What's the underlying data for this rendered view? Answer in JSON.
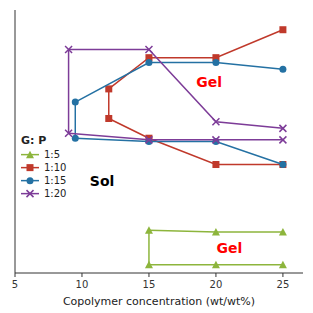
{
  "chart_data": {
    "type": "line",
    "xlabel": "Copolymer concentration (wt/wt%)",
    "xlim": [
      5,
      26.5
    ],
    "ylim": [
      0,
      80
    ],
    "xticks": [
      5,
      10,
      15,
      20,
      25
    ],
    "yticks": [],
    "tick_labels": "x",
    "legend": "center left",
    "legend_title": "G: P",
    "series": [
      {
        "name": "1:5",
        "color": "#8db53c",
        "marker": "triangle",
        "x": [
          15.0,
          20.0,
          25.0
        ],
        "upper": [
          13.0,
          12.5,
          12.5
        ],
        "lower": [
          2.5,
          2.5,
          2.5
        ]
      },
      {
        "name": "1:10",
        "color": "#c0392b",
        "marker": "square",
        "x": [
          12.0,
          15.0,
          20.0,
          25.0
        ],
        "upper": [
          56.0,
          65.5,
          65.5,
          74.0
        ],
        "lower": [
          47.0,
          41.0,
          33.0,
          33.0
        ]
      },
      {
        "name": "1:15",
        "color": "#2471a3",
        "marker": "circle",
        "x": [
          9.5,
          15.0,
          20.0,
          25.0
        ],
        "upper": [
          52.0,
          64.0,
          64.0,
          62.0
        ],
        "lower": [
          41.0,
          40.0,
          40.0,
          33.0
        ]
      },
      {
        "name": "1:20",
        "color": "#7d3c98",
        "marker": "x",
        "x": [
          9.0,
          15.0,
          20.0,
          25.0
        ],
        "upper": [
          68.0,
          68.0,
          46.0,
          44.0
        ],
        "lower": [
          42.5,
          40.5,
          40.5,
          40.5
        ]
      }
    ],
    "annotations": [
      {
        "text": "Gel",
        "x": 19.5,
        "y": 58.0,
        "color": "red"
      },
      {
        "text": "Gel",
        "x": 21.0,
        "y": 7.5,
        "color": "red"
      },
      {
        "text": "Sol",
        "x": 11.5,
        "y": 28.0,
        "color": "black"
      }
    ]
  }
}
